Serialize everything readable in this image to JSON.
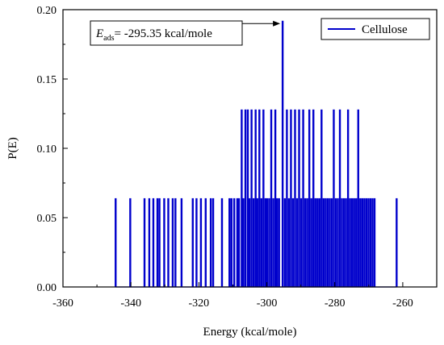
{
  "chart_data": {
    "type": "bar",
    "xlabel": "Energy (kcal/mole)",
    "ylabel": "P(E)",
    "xlim": [
      -360,
      -250
    ],
    "ylim": [
      0,
      0.2
    ],
    "xticks": [
      -360,
      -340,
      -320,
      -300,
      -280,
      -260
    ],
    "yticks": [
      0.0,
      0.05,
      0.1,
      0.15,
      0.2
    ],
    "ytick_labels": [
      "0.00",
      "0.05",
      "0.10",
      "0.15",
      "0.20"
    ],
    "legend": {
      "position": "top-right",
      "series_name": "Cellulose"
    },
    "color": "#0000cc",
    "annotation": {
      "symbol": "E",
      "subscript": "ads",
      "text": "= -295.35 kcal/mole",
      "points_to": {
        "x": -295.35,
        "y": 0.19
      }
    },
    "series": [
      {
        "name": "Cellulose",
        "x": [
          -344.5,
          -340.2,
          -336.0,
          -334.6,
          -333.4,
          -332.2,
          -331.6,
          -330.2,
          -329.0,
          -327.7,
          -326.9,
          -325.1,
          -321.8,
          -320.7,
          -319.4,
          -318.0,
          -316.5,
          -315.8,
          -313.2,
          -311.0,
          -310.4,
          -309.6,
          -308.7,
          -308.2,
          -307.4,
          -306.9,
          -306.3,
          -305.6,
          -305.1,
          -304.5,
          -303.9,
          -303.3,
          -302.8,
          -302.2,
          -301.6,
          -301.0,
          -300.4,
          -299.9,
          -299.3,
          -298.7,
          -298.1,
          -297.5,
          -297.0,
          -296.4,
          -295.35,
          -294.7,
          -294.1,
          -293.5,
          -292.9,
          -292.3,
          -291.7,
          -291.1,
          -290.5,
          -289.9,
          -289.3,
          -288.7,
          -288.1,
          -287.5,
          -286.9,
          -286.3,
          -285.7,
          -285.1,
          -284.5,
          -283.9,
          -283.3,
          -282.7,
          -282.1,
          -281.5,
          -280.9,
          -280.3,
          -279.7,
          -279.1,
          -278.5,
          -277.9,
          -277.3,
          -276.7,
          -276.1,
          -275.5,
          -274.9,
          -274.3,
          -273.7,
          -273.1,
          -272.5,
          -271.9,
          -271.3,
          -270.7,
          -270.1,
          -269.5,
          -268.9,
          -268.3,
          -261.8
        ],
        "y": [
          0.064,
          0.064,
          0.064,
          0.064,
          0.064,
          0.064,
          0.064,
          0.064,
          0.064,
          0.064,
          0.064,
          0.064,
          0.064,
          0.064,
          0.064,
          0.064,
          0.064,
          0.064,
          0.064,
          0.064,
          0.064,
          0.064,
          0.064,
          0.064,
          0.128,
          0.064,
          0.128,
          0.128,
          0.064,
          0.128,
          0.064,
          0.128,
          0.064,
          0.128,
          0.064,
          0.128,
          0.064,
          0.064,
          0.064,
          0.128,
          0.064,
          0.128,
          0.064,
          0.064,
          0.192,
          0.064,
          0.128,
          0.064,
          0.128,
          0.064,
          0.128,
          0.064,
          0.128,
          0.064,
          0.128,
          0.064,
          0.064,
          0.128,
          0.064,
          0.128,
          0.064,
          0.064,
          0.064,
          0.128,
          0.064,
          0.064,
          0.064,
          0.064,
          0.064,
          0.128,
          0.064,
          0.064,
          0.128,
          0.064,
          0.064,
          0.064,
          0.128,
          0.064,
          0.064,
          0.064,
          0.064,
          0.128,
          0.064,
          0.064,
          0.064,
          0.064,
          0.064,
          0.064,
          0.064,
          0.064,
          0.064
        ]
      }
    ]
  }
}
